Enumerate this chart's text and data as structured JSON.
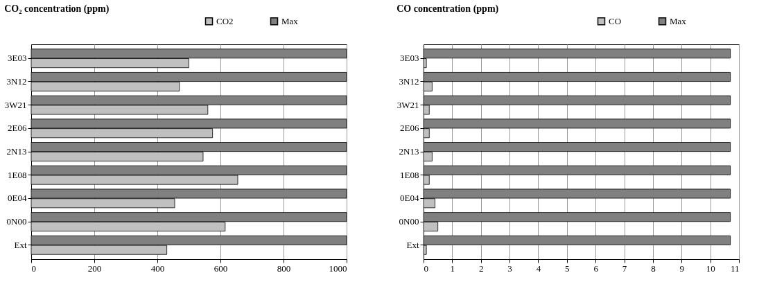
{
  "chart_data": [
    {
      "type": "bar",
      "orientation": "horizontal",
      "title": "CO₂ concentration (ppm)",
      "categories": [
        "3E03",
        "3N12",
        "3W21",
        "2E06",
        "2N13",
        "1E08",
        "0E04",
        "0N00",
        "Ext"
      ],
      "series": [
        {
          "name": "CO2",
          "color": "#c0c0c0",
          "values": [
            500,
            470,
            560,
            575,
            545,
            655,
            455,
            615,
            430
          ]
        },
        {
          "name": "Max",
          "color": "#808080",
          "values": [
            1000,
            1000,
            1000,
            1000,
            1000,
            1000,
            1000,
            1000,
            1000
          ]
        }
      ],
      "xlim": [
        0,
        1000
      ],
      "xticks": [
        0,
        200,
        400,
        600,
        800,
        1000
      ],
      "grid": "x",
      "legend": "top right"
    },
    {
      "type": "bar",
      "orientation": "horizontal",
      "title": "CO concentration (ppm)",
      "categories": [
        "3E03",
        "3N12",
        "3W21",
        "2E06",
        "2N13",
        "1E08",
        "0E04",
        "0N00",
        "Ext"
      ],
      "series": [
        {
          "name": "CO",
          "color": "#c0c0c0",
          "values": [
            0.1,
            0.3,
            0.2,
            0.2,
            0.3,
            0.2,
            0.4,
            0.5,
            0.1
          ]
        },
        {
          "name": "Max",
          "color": "#808080",
          "values": [
            10.7,
            10.7,
            10.7,
            10.7,
            10.7,
            10.7,
            10.7,
            10.7,
            10.7
          ]
        }
      ],
      "xlim": [
        0,
        11
      ],
      "xticks": [
        0,
        1,
        2,
        3,
        4,
        5,
        6,
        7,
        8,
        9,
        10,
        11
      ],
      "grid": "x",
      "legend": "top right"
    }
  ]
}
